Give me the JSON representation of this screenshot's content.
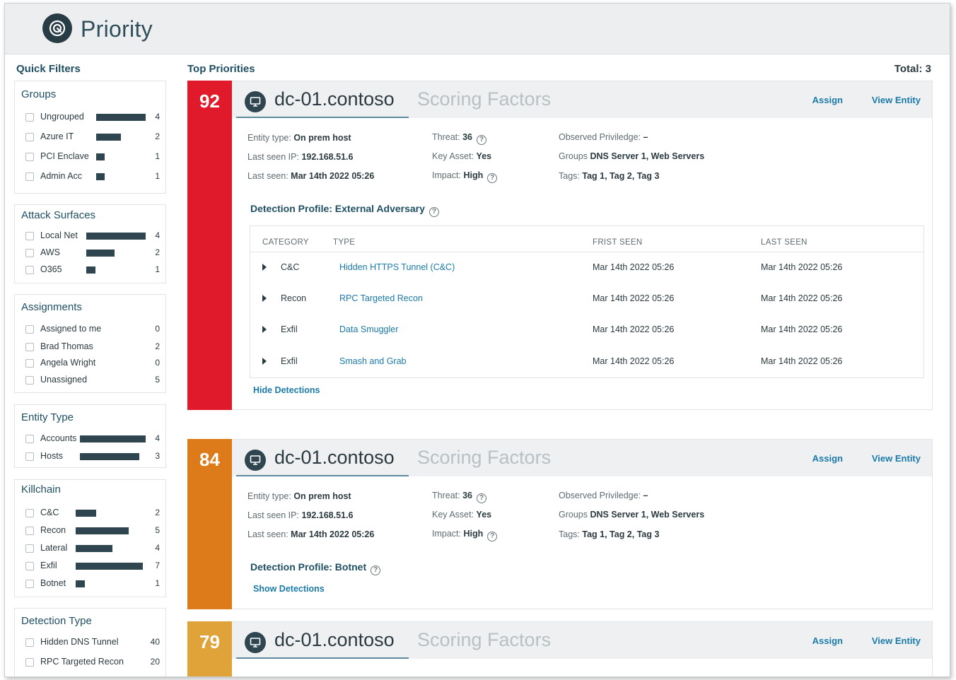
{
  "app": {
    "title": "Priority"
  },
  "sidebar": {
    "title": "Quick Filters",
    "groups": {
      "title": "Groups",
      "items": [
        {
          "label": "Ungrouped",
          "count": "4"
        },
        {
          "label": "Azure IT",
          "count": "2"
        },
        {
          "label": "PCI Enclave",
          "count": "1"
        },
        {
          "label": "Admin Acc",
          "count": "1"
        }
      ]
    },
    "attack_surfaces": {
      "title": "Attack Surfaces",
      "items": [
        {
          "label": "Local Net",
          "count": "4"
        },
        {
          "label": "AWS",
          "count": "2"
        },
        {
          "label": "O365",
          "count": "1"
        }
      ]
    },
    "assignments": {
      "title": "Assignments",
      "items": [
        {
          "label": "Assigned to me",
          "count": "0"
        },
        {
          "label": "Brad Thomas",
          "count": "2"
        },
        {
          "label": "Angela Wright",
          "count": "0"
        },
        {
          "label": "Unassigned",
          "count": "5"
        }
      ]
    },
    "entity_type": {
      "title": "Entity Type",
      "items": [
        {
          "label": "Accounts",
          "count": "4"
        },
        {
          "label": "Hosts",
          "count": "3"
        }
      ]
    },
    "killchain": {
      "title": "Killchain",
      "items": [
        {
          "label": "C&C",
          "count": "2"
        },
        {
          "label": "Recon",
          "count": "5"
        },
        {
          "label": "Lateral",
          "count": "4"
        },
        {
          "label": "Exfil",
          "count": "7"
        },
        {
          "label": "Botnet",
          "count": "1"
        }
      ]
    },
    "detection_type": {
      "title": "Detection Type",
      "items": [
        {
          "label": "Hidden DNS Tunnel",
          "count": "40"
        },
        {
          "label": "RPC Targeted Recon",
          "count": "20"
        }
      ]
    }
  },
  "main": {
    "title": "Top Priorities",
    "total": "Total: 3",
    "cards": [
      {
        "score": "92",
        "color": "#e0192b",
        "entity": "dc-01.contoso",
        "tab_inactive": "Scoring Factors",
        "assign": "Assign",
        "view_entity": "View Entity",
        "entity_type_label": "Entity type:",
        "entity_type": "On prem host",
        "last_ip_label": "Last seen IP:",
        "last_ip": "192.168.51.6",
        "last_seen_label": "Last seen:",
        "last_seen": "Mar 14th 2022 05:26",
        "threat_label": "Threat:",
        "threat": "36",
        "key_asset_label": "Key Asset:",
        "key_asset": "Yes",
        "impact_label": "Impact:",
        "impact": "High",
        "observed_label": "Observed Priviledge:",
        "observed": "–",
        "groups_label": "Groups",
        "groups": "DNS Server 1, Web Servers",
        "tags_label": "Tags:",
        "tags": "Tag 1, Tag 2, Tag 3",
        "profile": "Detection Profile: External Adversary",
        "table": {
          "headers": [
            "CATEGORY",
            "TYPE",
            "FRIST SEEN",
            "LAST SEEN"
          ],
          "rows": [
            {
              "category": "C&C",
              "type": "Hidden HTTPS Tunnel (C&C)",
              "first": "Mar 14th 2022 05:26",
              "last": "Mar 14th 2022 05:26"
            },
            {
              "category": "Recon",
              "type": "RPC Targeted Recon",
              "first": "Mar 14th 2022 05:26",
              "last": "Mar 14th 2022 05:26"
            },
            {
              "category": "Exfil",
              "type": "Data Smuggler",
              "first": "Mar 14th 2022 05:26",
              "last": "Mar 14th 2022 05:26"
            },
            {
              "category": "Exfil",
              "type": "Smash and Grab",
              "first": "Mar 14th 2022 05:26",
              "last": "Mar 14th 2022 05:26"
            }
          ]
        },
        "toggle": "Hide Detections"
      },
      {
        "score": "84",
        "color": "#dd7a1a",
        "entity": "dc-01.contoso",
        "tab_inactive": "Scoring Factors",
        "assign": "Assign",
        "view_entity": "View Entity",
        "entity_type_label": "Entity type:",
        "entity_type": "On prem host",
        "last_ip_label": "Last seen IP:",
        "last_ip": "192.168.51.6",
        "last_seen_label": "Last seen:",
        "last_seen": "Mar 14th 2022 05:26",
        "threat_label": "Threat:",
        "threat": "36",
        "key_asset_label": "Key Asset:",
        "key_asset": "Yes",
        "impact_label": "Impact:",
        "impact": "High",
        "observed_label": "Observed Priviledge:",
        "observed": "–",
        "groups_label": "Groups",
        "groups": "DNS Server 1, Web Servers",
        "tags_label": "Tags:",
        "tags": "Tag 1, Tag 2, Tag 3",
        "profile": "Detection Profile: Botnet",
        "toggle": "Show Detections"
      },
      {
        "score": "79",
        "color": "#e0a33a",
        "entity": "dc-01.contoso",
        "tab_inactive": "Scoring Factors",
        "assign": "Assign",
        "view_entity": "View Entity"
      }
    ]
  },
  "colors": {
    "accent_link": "#1a7aa8",
    "heading": "#1f4f63",
    "bar": "#2f4650"
  }
}
